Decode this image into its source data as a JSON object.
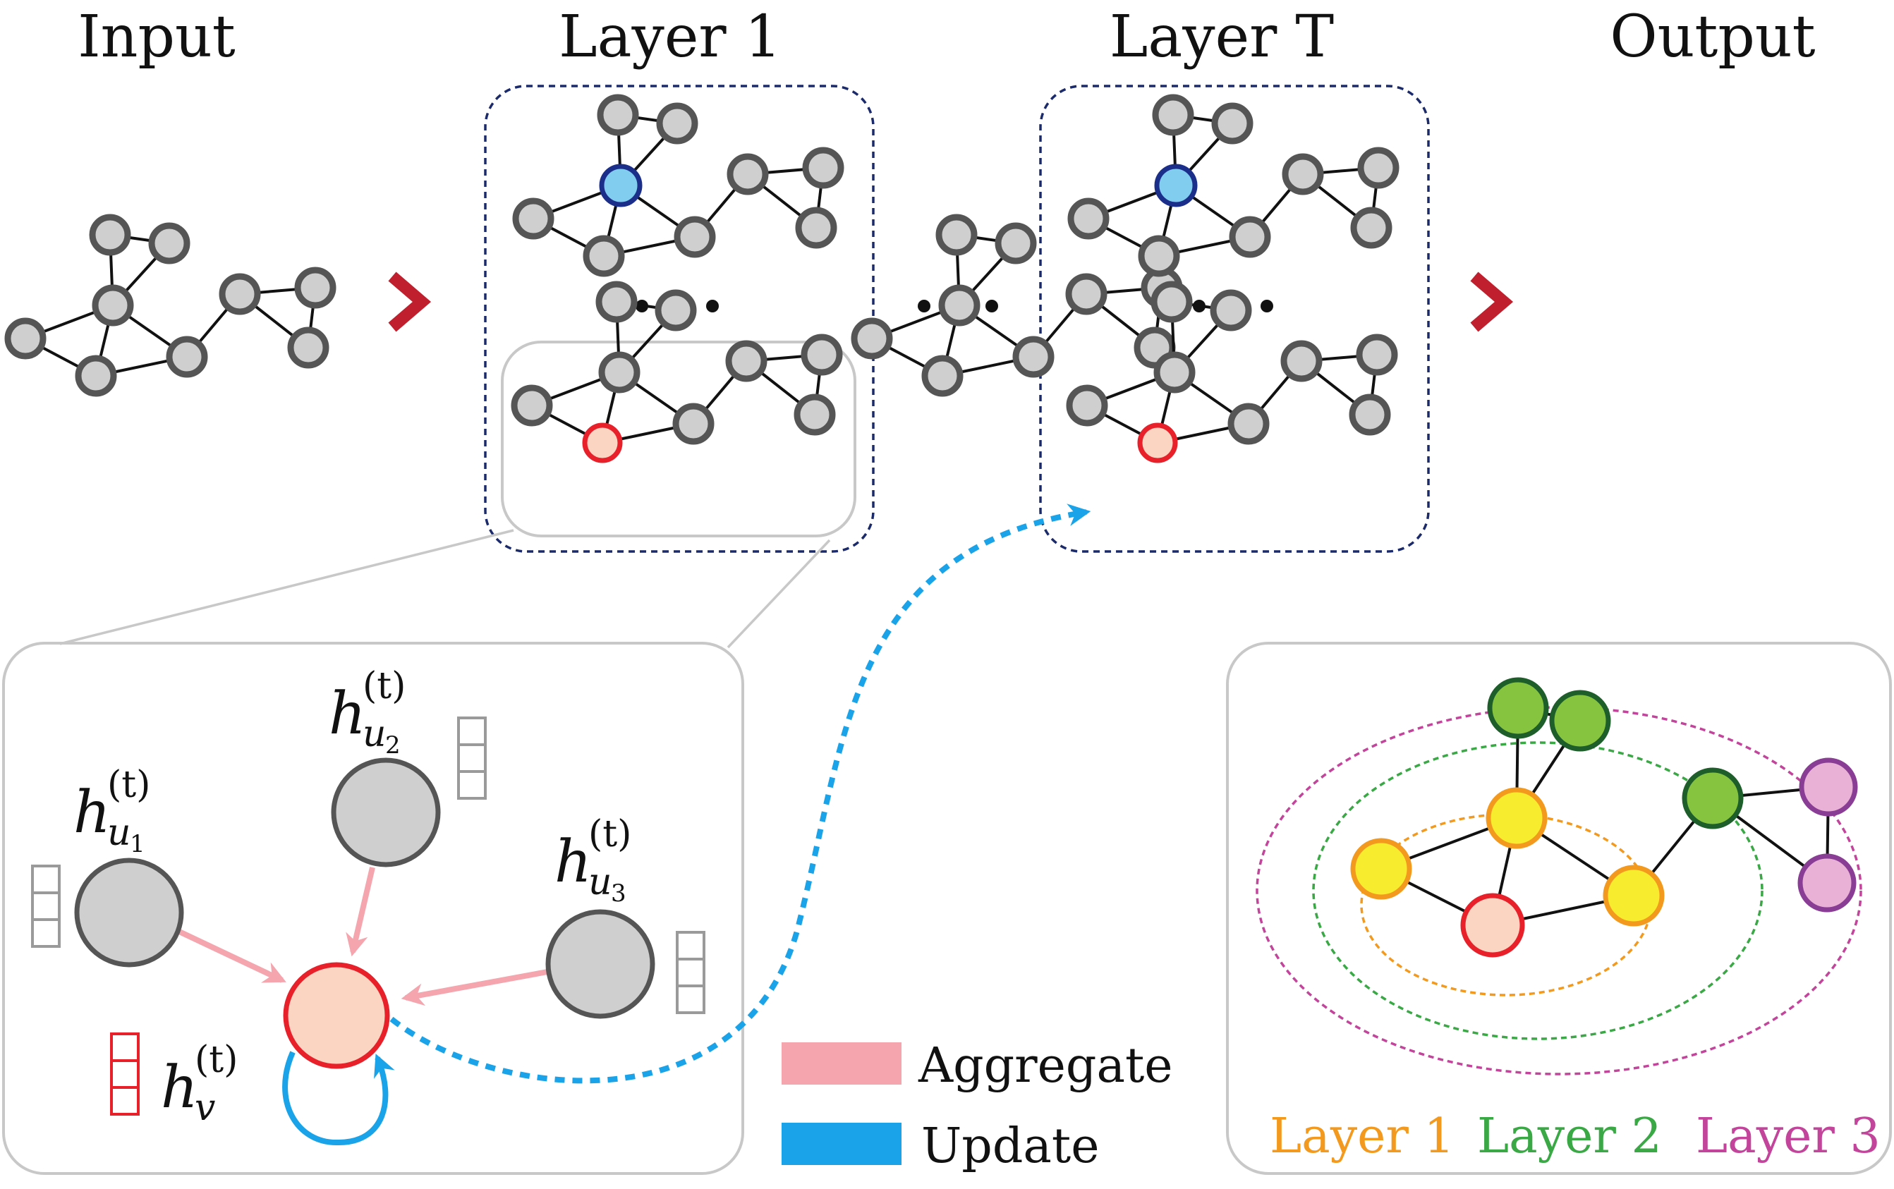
{
  "titles": {
    "input": "Input",
    "layer1": "Layer 1",
    "layerT": "Layer T",
    "output": "Output"
  },
  "ellipsis": "• • •",
  "math": {
    "h_u1": {
      "base": "h",
      "sup": "(t)",
      "sub": "u",
      "subsub": "1"
    },
    "h_u2": {
      "base": "h",
      "sup": "(t)",
      "sub": "u",
      "subsub": "2"
    },
    "h_u3": {
      "base": "h",
      "sup": "(t)",
      "sub": "u",
      "subsub": "3"
    },
    "h_v": {
      "base": "h",
      "sup": "(t)",
      "sub": "v"
    }
  },
  "legend": {
    "aggregate": "Aggregate",
    "update": "Update"
  },
  "receptive_field": {
    "layer1": "Layer 1",
    "layer2": "Layer 2",
    "layer3": "Layer 3"
  },
  "colors": {
    "node_fill": "#cfcfcf",
    "node_stroke": "#555555",
    "blue_node_fill": "#80cdf0",
    "blue_node_stroke": "#1b2f8a",
    "target_fill": "#fcd5c2",
    "target_stroke": "#e8202a",
    "arrow_red": "#c0202e",
    "aggregate": "#f4a5ae",
    "update": "#1aa3e8",
    "frame_blue": "#1b2a6b",
    "box_gray": "#c8c8c8",
    "layer1": "#f39a1e",
    "layer2": "#39a845",
    "layer3": "#c2449b",
    "green_fill": "#86c440",
    "green_stroke": "#1d5e2a",
    "yellow_fill": "#f8ec2e",
    "yellow_stroke": "#f39a1e",
    "pink_fill": "#e9b1d6",
    "pink_stroke": "#8a3d94"
  }
}
